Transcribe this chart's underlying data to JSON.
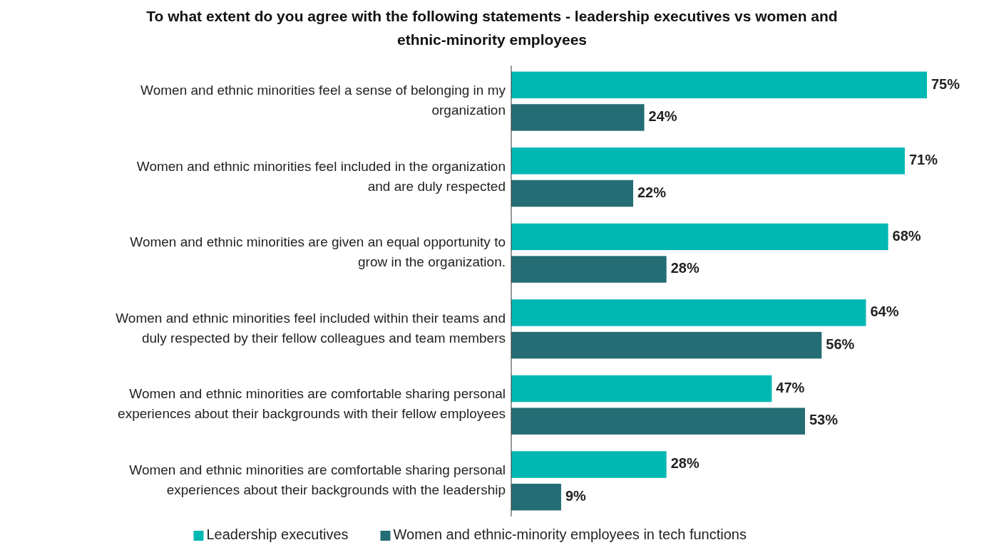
{
  "chart_data": {
    "type": "bar",
    "orientation": "horizontal",
    "title": "To what extent do you agree with the following statements - leadership executives vs women and ethnic-minority employees",
    "categories": [
      "Women and ethnic minorities feel a sense of belonging in my organization",
      "Women and ethnic minorities feel included in the organization and are duly respected",
      "Women and ethnic minorities are given an equal opportunity to grow in the organization.",
      "Women and ethnic minorities feel included within their teams and duly respected by their fellow colleagues and team members",
      "Women and ethnic minorities are comfortable sharing personal experiences about their backgrounds with their fellow employees",
      "Women and ethnic minorities are comfortable sharing personal experiences about their backgrounds with the leadership"
    ],
    "series": [
      {
        "name": "Leadership executives",
        "color": "#00b8b3",
        "values": [
          75,
          71,
          68,
          64,
          47,
          28
        ],
        "value_labels": [
          "75%",
          "71%",
          "68%",
          "64%",
          "47%",
          "28%"
        ]
      },
      {
        "name": "Women and ethnic-minority employees in tech functions",
        "color": "#246d74",
        "values": [
          24,
          22,
          28,
          56,
          53,
          9
        ],
        "value_labels": [
          "24%",
          "22%",
          "28%",
          "56%",
          "53%",
          "9%"
        ]
      }
    ],
    "legend": "bottom"
  }
}
